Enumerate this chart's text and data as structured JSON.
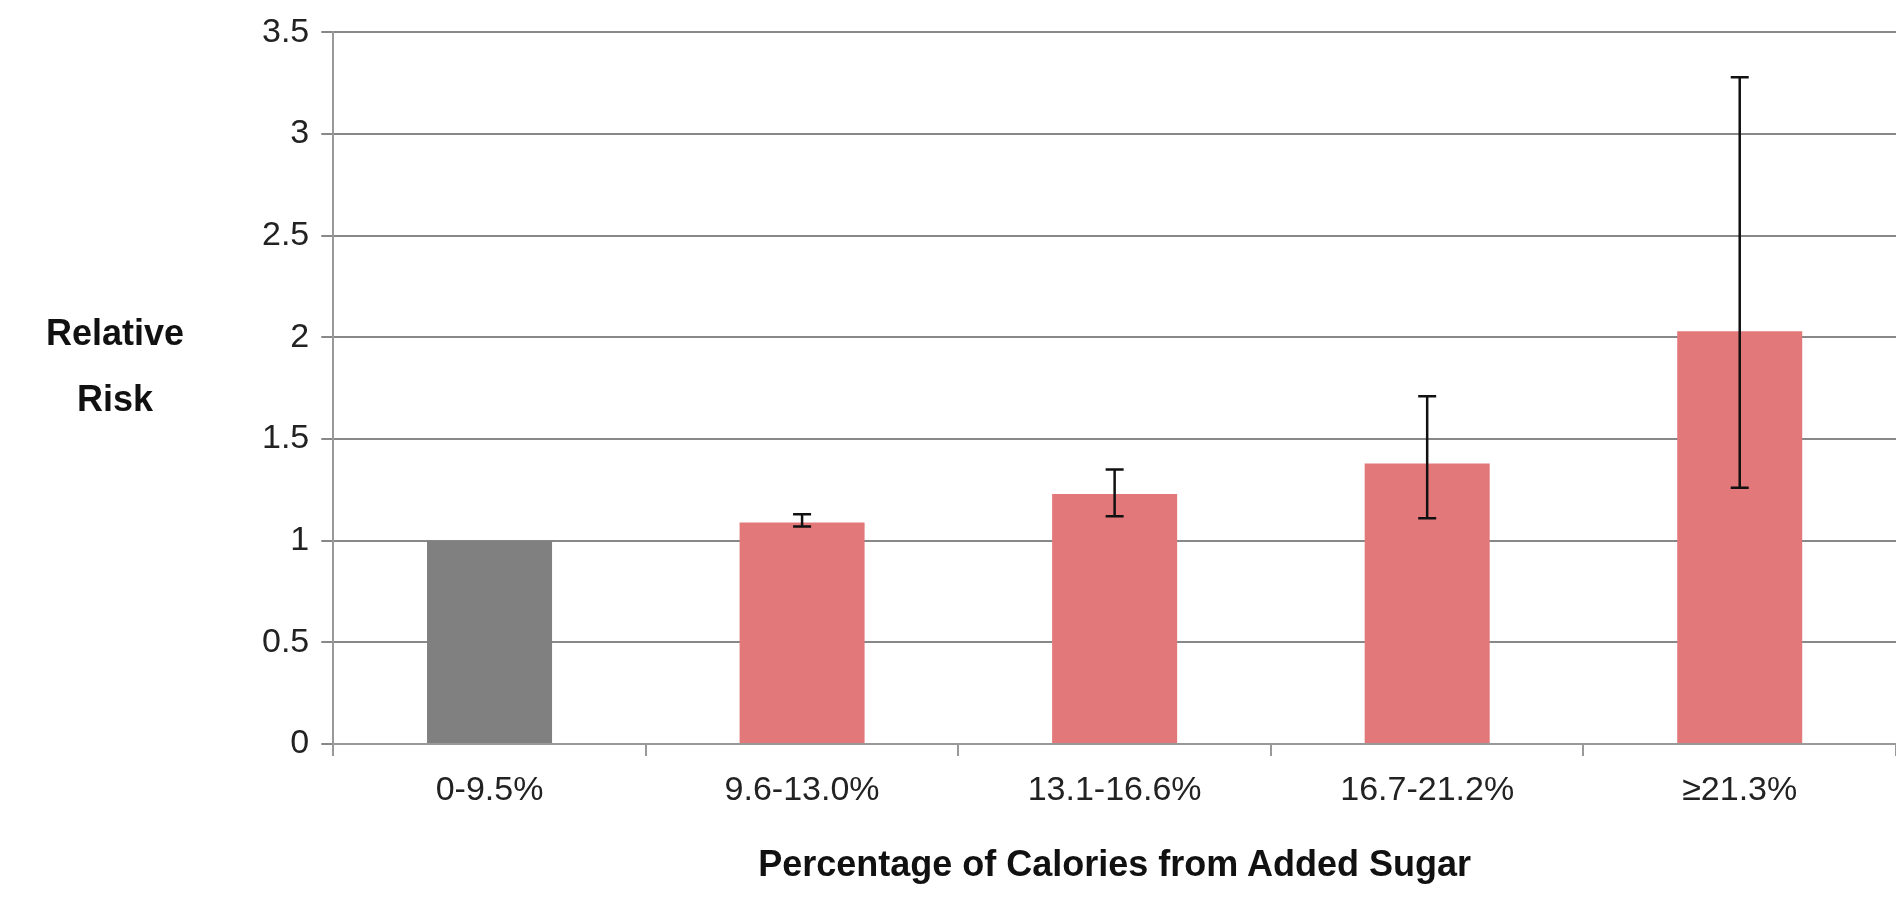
{
  "chart_data": {
    "type": "bar",
    "xlabel": "Percentage of Calories from Added Sugar",
    "ylabel": "Relative Risk",
    "categories": [
      "0-9.5%",
      "9.6-13.0%",
      "13.1-16.6%",
      "16.7-21.2%",
      "≥21.3%"
    ],
    "values": [
      1.0,
      1.09,
      1.23,
      1.38,
      2.03
    ],
    "colors": [
      "#808080",
      "#e2787a",
      "#e2787a",
      "#e2787a",
      "#e2787a"
    ],
    "errors": [
      null,
      [
        1.07,
        1.13
      ],
      [
        1.12,
        1.35
      ],
      [
        1.11,
        1.71
      ],
      [
        1.26,
        3.28
      ]
    ],
    "ylim": [
      0,
      3.5
    ],
    "yticks": [
      0,
      0.5,
      1,
      1.5,
      2,
      2.5,
      3,
      3.5
    ],
    "grid": "y",
    "legend": false
  }
}
